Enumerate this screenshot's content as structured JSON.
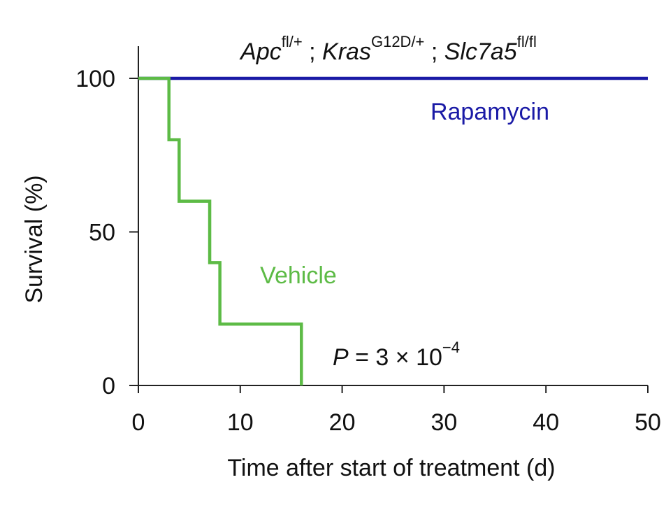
{
  "chart_data": {
    "type": "line",
    "step": true,
    "title_parts": {
      "gene1": "Apc",
      "gene1_sup": "fl/+",
      "sep1": " ; ",
      "gene2": "Kras",
      "gene2_sup": "G12D/+",
      "sep2": " ; ",
      "gene3": "Slc7a5",
      "gene3_sup": "fl/fl"
    },
    "xlabel": "Time after start of treatment (d)",
    "ylabel": "Survival (%)",
    "xlim": [
      0,
      50
    ],
    "ylim": [
      0,
      100
    ],
    "xticks": [
      0,
      10,
      20,
      30,
      40,
      50
    ],
    "yticks": [
      0,
      50,
      100
    ],
    "grid": false,
    "series": [
      {
        "name": "Rapamycin",
        "color": "#1a1aa6",
        "x": [
          0,
          50
        ],
        "y": [
          100,
          100
        ]
      },
      {
        "name": "Vehicle",
        "color": "#5dbb46",
        "x": [
          0,
          3,
          4,
          7,
          8,
          16
        ],
        "y": [
          100,
          80,
          60,
          40,
          20,
          0
        ]
      }
    ],
    "annotation": {
      "p_italic": "P",
      "p_rest": " = 3 × 10",
      "p_exp": "−4"
    }
  }
}
